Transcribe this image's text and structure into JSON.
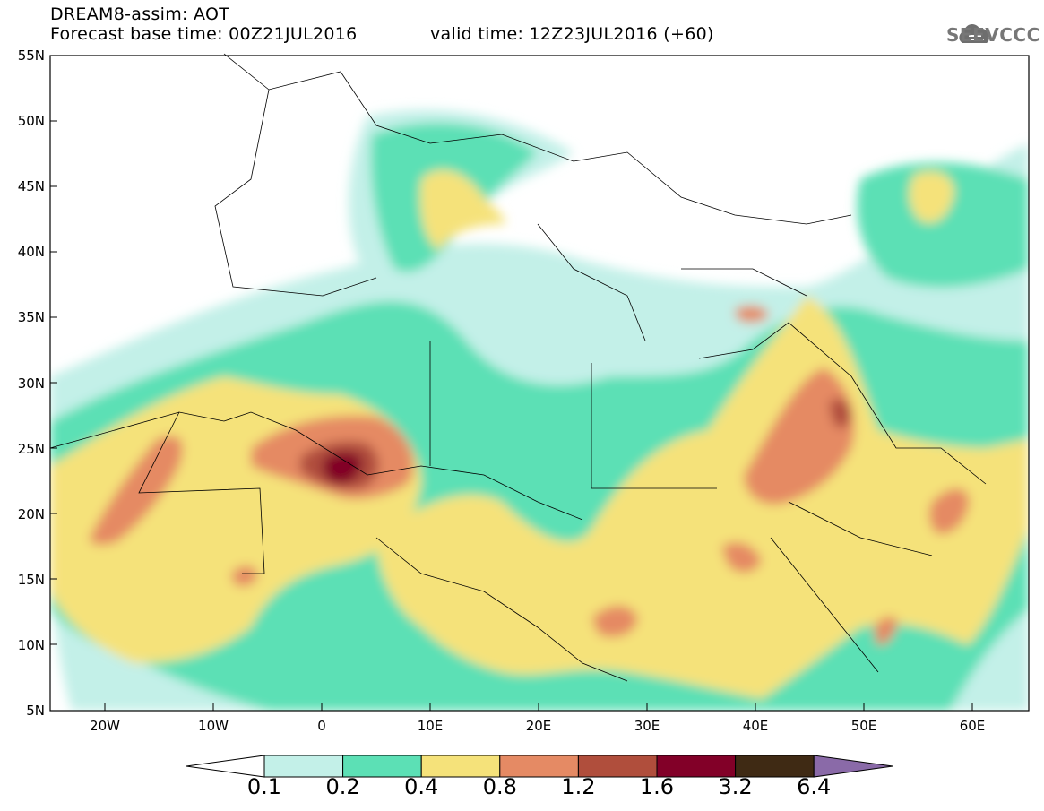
{
  "header": {
    "title": "DREAM8-assim: AOT",
    "base_time": "Forecast base time: 00Z21JUL2016",
    "valid_time": "valid time: 12Z23JUL2016 (+60)"
  },
  "logo": {
    "text": "SEEVCCC",
    "icon": "cloud-logo-icon"
  },
  "map": {
    "lat_labels": [
      "55N",
      "50N",
      "45N",
      "40N",
      "35N",
      "30N",
      "25N",
      "20N",
      "15N",
      "10N",
      "5N"
    ],
    "lon_labels": [
      "20W",
      "10W",
      "0",
      "10E",
      "20E",
      "30E",
      "40E",
      "50E",
      "60E"
    ],
    "lat_range": [
      5,
      55
    ],
    "lon_range": [
      -25,
      65
    ]
  },
  "colorbar": {
    "labels": [
      "0.1",
      "0.2",
      "0.4",
      "0.8",
      "1.2",
      "1.6",
      "3.2",
      "6.4"
    ],
    "colors": [
      "#ffffff",
      "#c3f0e8",
      "#5ce0b5",
      "#f5e27a",
      "#e58a64",
      "#b04e3c",
      "#820028",
      "#3f2a14",
      "#8a6aa8"
    ]
  }
}
